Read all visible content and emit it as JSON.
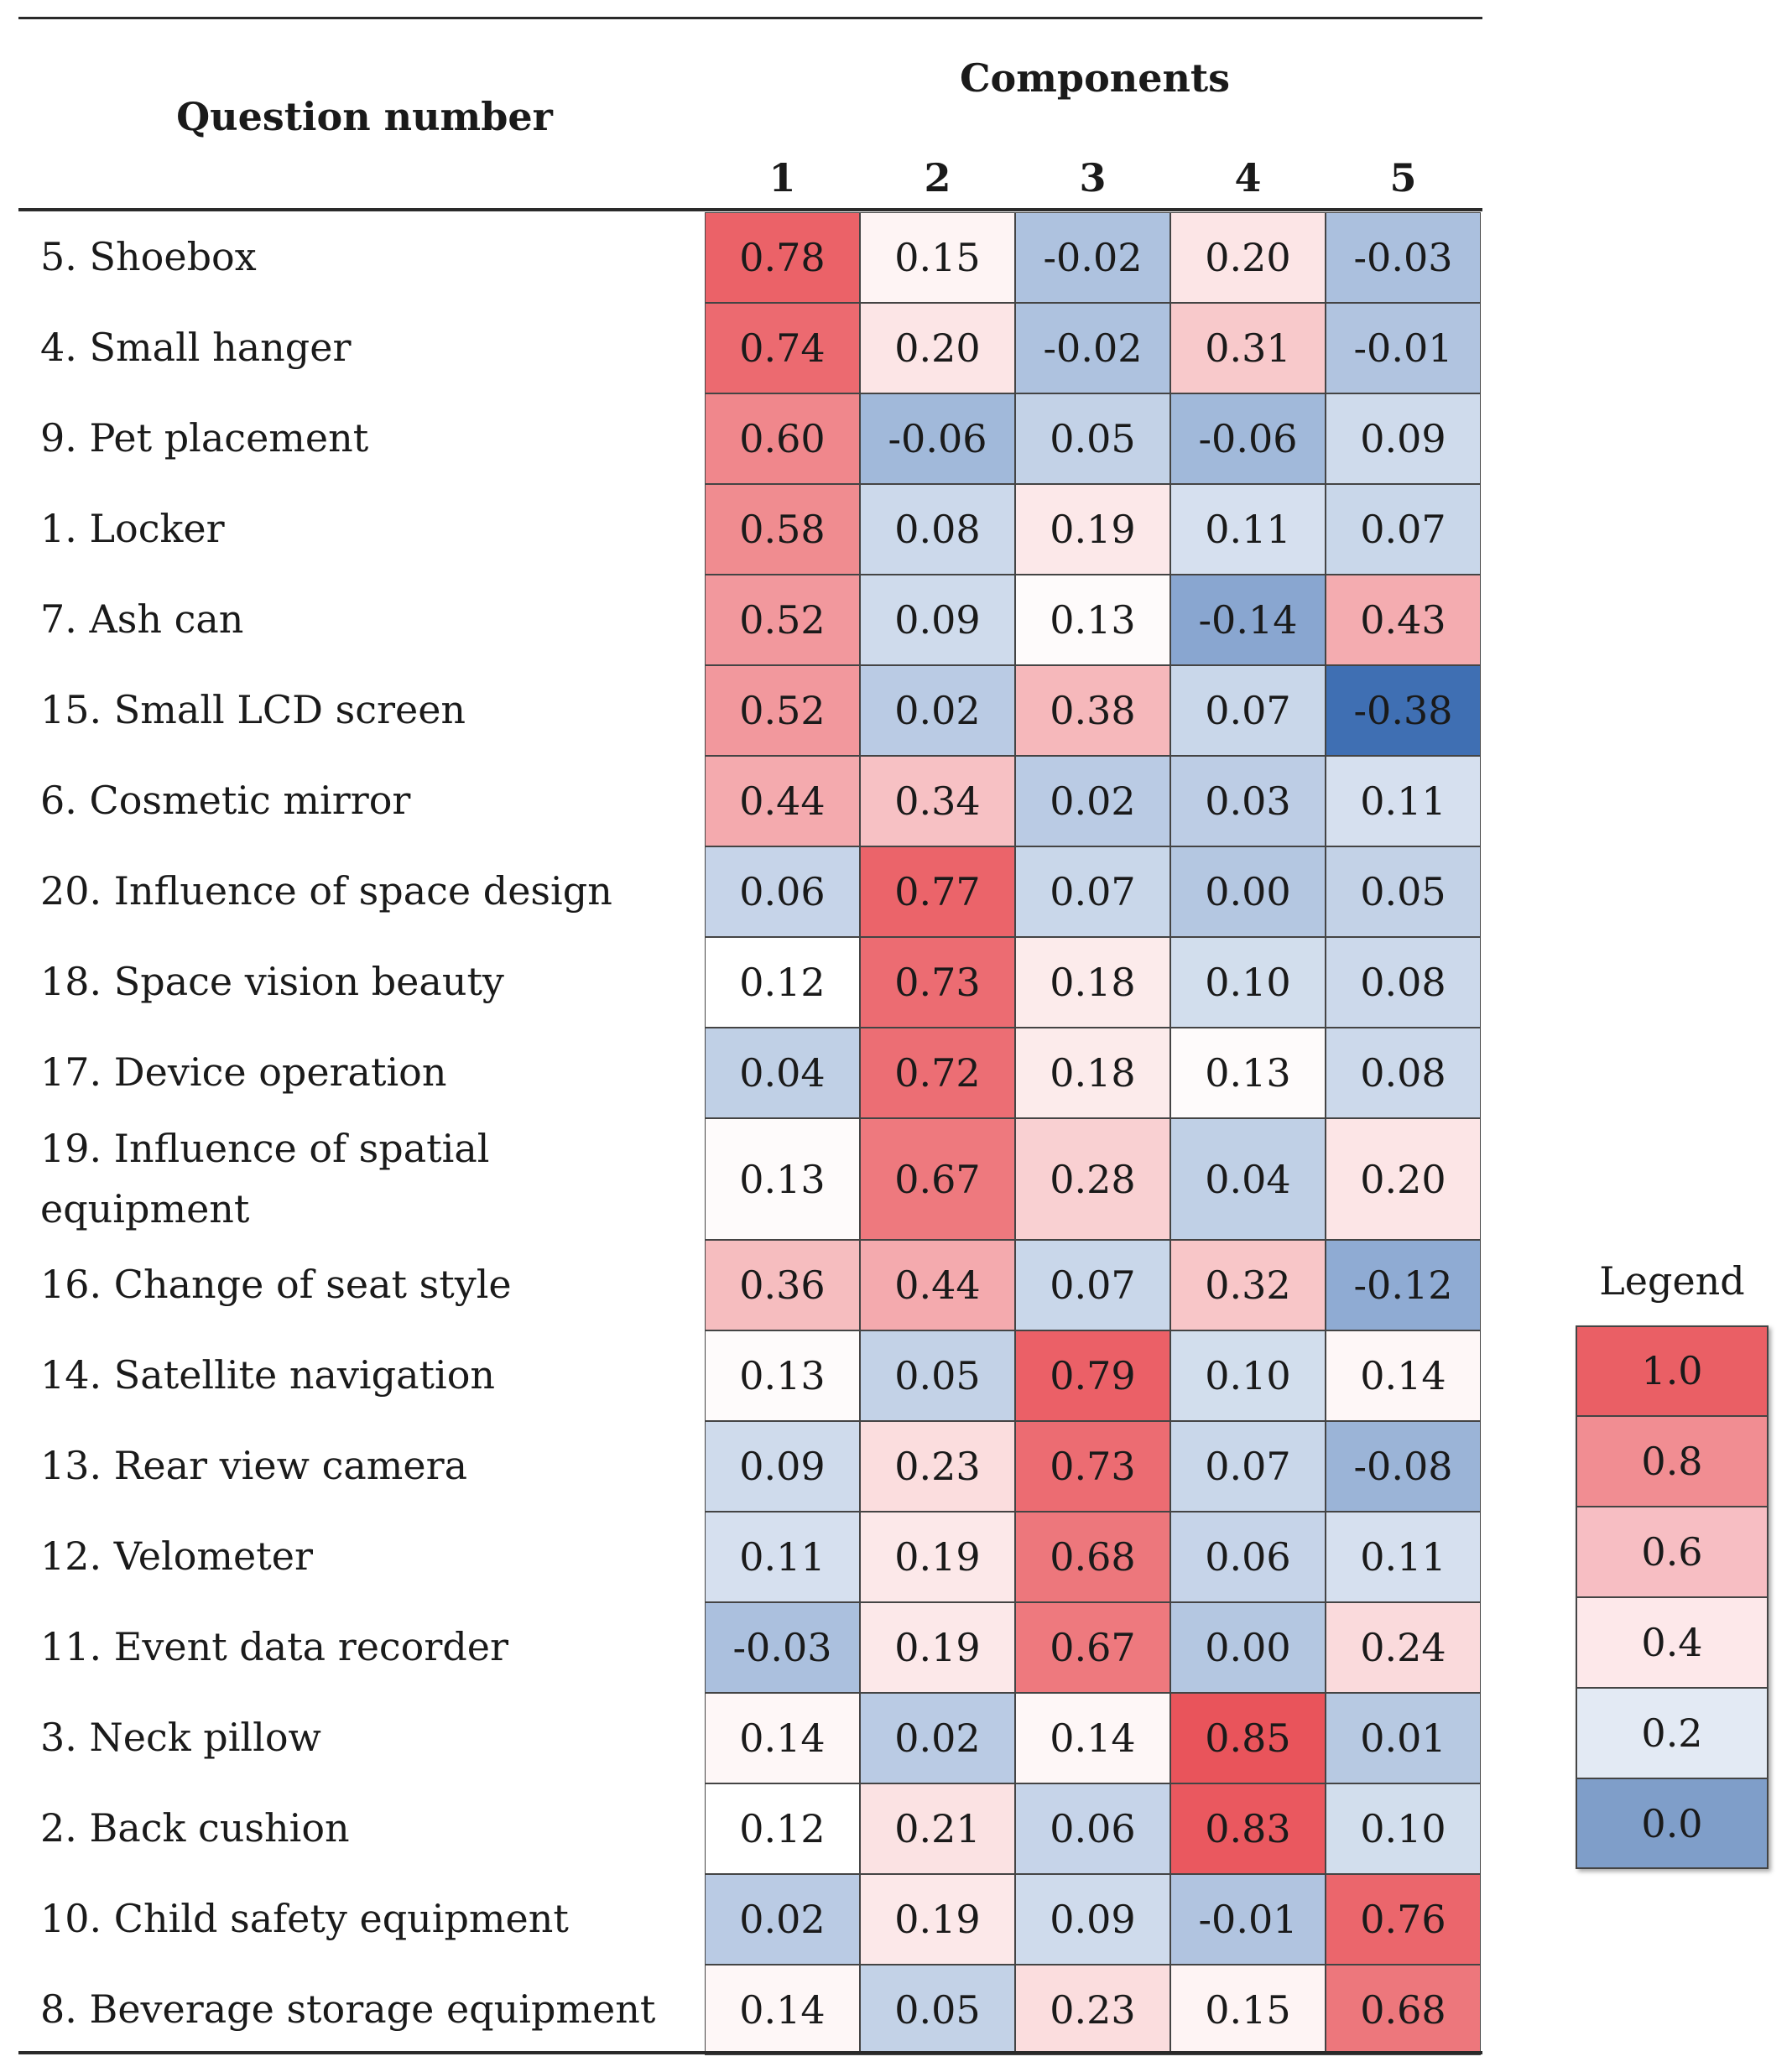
{
  "chart_data": {
    "type": "heatmap",
    "row_header": "Question number",
    "column_group_header": "Components",
    "columns": [
      "1",
      "2",
      "3",
      "4",
      "5"
    ],
    "rows": [
      {
        "label": "5. Shoebox",
        "values": [
          "0.78",
          "0.15",
          "-0.02",
          "0.20",
          "-0.03"
        ]
      },
      {
        "label": "4. Small hanger",
        "values": [
          "0.74",
          "0.20",
          "-0.02",
          "0.31",
          "-0.01"
        ]
      },
      {
        "label": "9. Pet placement",
        "values": [
          "0.60",
          "-0.06",
          "0.05",
          "-0.06",
          "0.09"
        ]
      },
      {
        "label": "1. Locker",
        "values": [
          "0.58",
          "0.08",
          "0.19",
          "0.11",
          "0.07"
        ]
      },
      {
        "label": "7. Ash can",
        "values": [
          "0.52",
          "0.09",
          "0.13",
          "-0.14",
          "0.43"
        ]
      },
      {
        "label": "15. Small LCD screen",
        "values": [
          "0.52",
          "0.02",
          "0.38",
          "0.07",
          "-0.38"
        ]
      },
      {
        "label": "6. Cosmetic mirror",
        "values": [
          "0.44",
          "0.34",
          "0.02",
          "0.03",
          "0.11"
        ]
      },
      {
        "label": "20. Influence of space design",
        "values": [
          "0.06",
          "0.77",
          "0.07",
          "0.00",
          "0.05"
        ]
      },
      {
        "label": "18. Space vision beauty",
        "values": [
          "0.12",
          "0.73",
          "0.18",
          "0.10",
          "0.08"
        ]
      },
      {
        "label": "17. Device operation",
        "values": [
          "0.04",
          "0.72",
          "0.18",
          "0.13",
          "0.08"
        ]
      },
      {
        "label": "19. Influence of spatial equipment",
        "values": [
          "0.13",
          "0.67",
          "0.28",
          "0.04",
          "0.20"
        ]
      },
      {
        "label": "16. Change of seat style",
        "values": [
          "0.36",
          "0.44",
          "0.07",
          "0.32",
          "-0.12"
        ]
      },
      {
        "label": "14. Satellite navigation",
        "values": [
          "0.13",
          "0.05",
          "0.79",
          "0.10",
          "0.14"
        ]
      },
      {
        "label": "13. Rear view camera",
        "values": [
          "0.09",
          "0.23",
          "0.73",
          "0.07",
          "-0.08"
        ]
      },
      {
        "label": "12. Velometer",
        "values": [
          "0.11",
          "0.19",
          "0.68",
          "0.06",
          "0.11"
        ]
      },
      {
        "label": "11. Event data recorder",
        "values": [
          "-0.03",
          "0.19",
          "0.67",
          "0.00",
          "0.24"
        ]
      },
      {
        "label": "3. Neck pillow",
        "values": [
          "0.14",
          "0.02",
          "0.14",
          "0.85",
          "0.01"
        ]
      },
      {
        "label": "2. Back cushion",
        "values": [
          "0.12",
          "0.21",
          "0.06",
          "0.83",
          "0.10"
        ]
      },
      {
        "label": "10. Child safety equipment",
        "values": [
          "0.02",
          "0.19",
          "0.09",
          "-0.01",
          "0.76"
        ]
      },
      {
        "label": "8. Beverage storage equipment",
        "values": [
          "0.14",
          "0.05",
          "0.23",
          "0.15",
          "0.68"
        ]
      }
    ],
    "legend": {
      "title": "Legend",
      "stops": [
        {
          "label": "1.0",
          "color": "#ea5f65"
        },
        {
          "label": "0.8",
          "color": "#f18d92"
        },
        {
          "label": "0.6",
          "color": "#f7bec3"
        },
        {
          "label": "0.4",
          "color": "#fde8ea"
        },
        {
          "label": "0.2",
          "color": "#e3eaf4"
        },
        {
          "label": "0.0",
          "color": "#7f9ec9"
        }
      ]
    },
    "color_scale": {
      "min_color": "#3f6fb3",
      "mid_color": "#ffffff",
      "max_color": "#e9545b"
    }
  }
}
